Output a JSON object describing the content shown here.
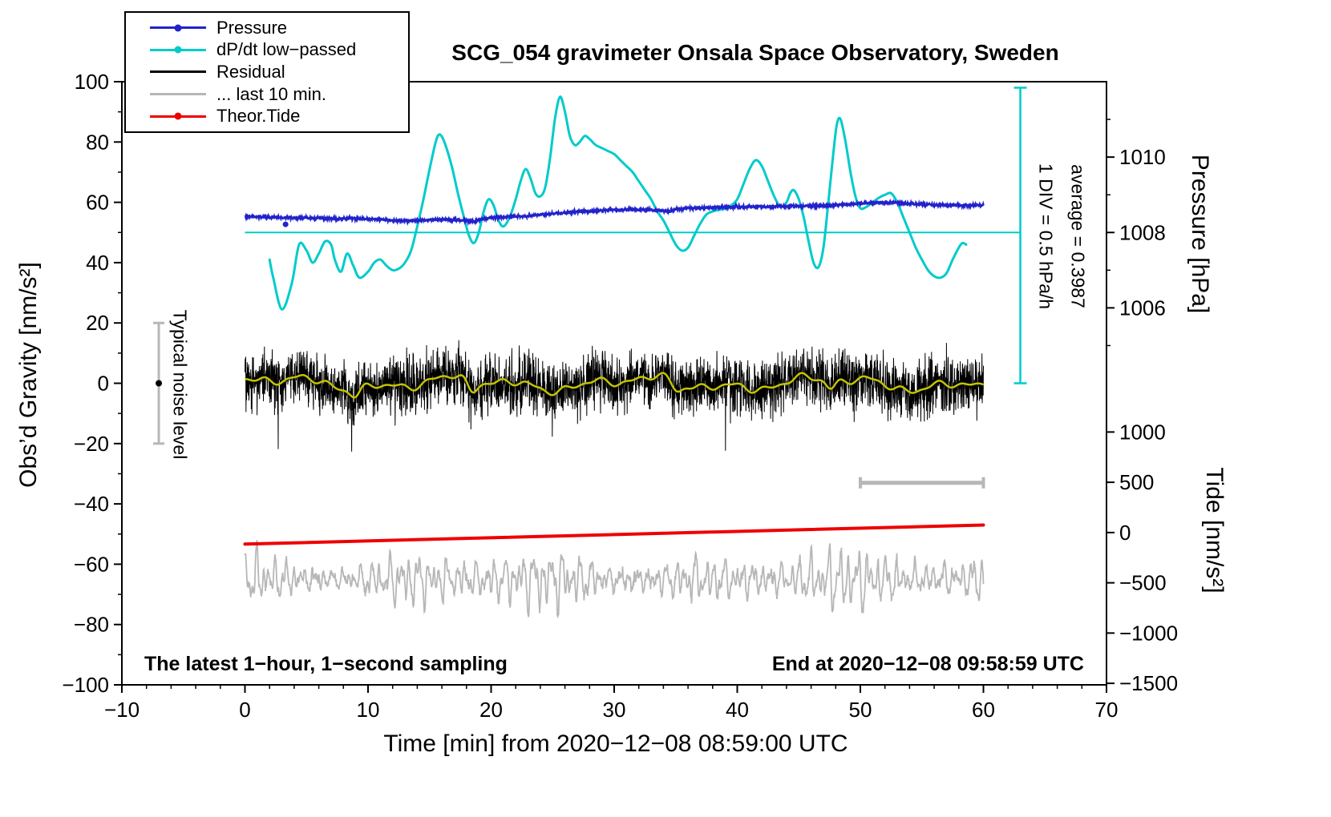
{
  "title": "SCG_054 gravimeter Onsala Space Observatory, Sweden",
  "footer": {
    "sampling_note": "The latest 1−hour, 1−second sampling",
    "end_time": "End at 2020−12−08 09:58:59 UTC"
  },
  "side_annotations": {
    "div_scale": "1 DIV = 0.5 hPa/h",
    "average": "average = 0.3987",
    "noise_level": "Typical noise level"
  },
  "legend": {
    "items": [
      {
        "label": "Pressure",
        "color": "#2222cc",
        "dot": true,
        "thickness": 3
      },
      {
        "label": "dP/dt low−passed",
        "color": "#00cbcb",
        "dot": true,
        "thickness": 3
      },
      {
        "label": "Residual",
        "color": "#000000",
        "dot": false,
        "thickness": 3
      },
      {
        "label": "... last 10 min.",
        "color": "#b7b7b7",
        "dot": false,
        "thickness": 3
      },
      {
        "label": "Theor.Tide",
        "color": "#ee0000",
        "dot": true,
        "thickness": 3
      }
    ]
  },
  "axes": {
    "x": {
      "label": "Time [min] from 2020−12−08 08:59:00 UTC",
      "min": -10,
      "max": 70,
      "major_ticks": [
        -10,
        0,
        10,
        20,
        30,
        40,
        50,
        60,
        70
      ],
      "minor_step": 2
    },
    "y_left": {
      "label": "Obs’d Gravity [nm/s²]",
      "min": -100,
      "max": 100,
      "major_ticks": [
        -100,
        -80,
        -60,
        -40,
        -20,
        0,
        20,
        40,
        60,
        80,
        100
      ],
      "minor_step": 10
    },
    "y_right_pressure": {
      "label": "Pressure [hPa]",
      "major_ticks": [
        1006,
        1008,
        1010
      ],
      "minor_ticks": [
        1005,
        1007,
        1009,
        1011
      ],
      "map": {
        "ref_hPa": 1008,
        "gravity_at_ref": 50,
        "gravity_per_hPa": 12.5
      }
    },
    "y_right_tide": {
      "label": "Tide [nm/s²]",
      "major_ticks": [
        1000,
        500,
        0,
        -500,
        -1000,
        -1500
      ],
      "map": {
        "gravity_at_zero": -49.5,
        "tide_per_gravity": 30
      }
    }
  },
  "chart_data": {
    "type": "line",
    "x_unit": "min",
    "series": [
      {
        "name": "Pressure",
        "axis": "pressure",
        "unit": "hPa",
        "color": "#2222cc",
        "style": "fuzzy-line",
        "x": [
          0,
          2,
          4,
          5,
          7,
          9,
          10,
          11,
          12,
          13,
          14,
          15,
          16,
          17,
          18,
          18.6,
          19,
          20,
          21,
          22,
          23,
          24,
          25,
          26,
          27,
          28,
          29,
          30,
          31,
          32,
          33,
          34,
          34.5,
          35,
          36,
          37,
          38,
          39,
          40,
          42,
          44,
          45,
          46,
          47,
          48,
          49,
          50,
          51,
          52,
          53,
          54,
          55,
          56,
          57,
          58,
          59,
          60
        ],
        "y": [
          1008.424,
          1008.408,
          1008.384,
          1008.392,
          1008.368,
          1008.368,
          1008.36,
          1008.344,
          1008.32,
          1008.304,
          1008.32,
          1008.336,
          1008.344,
          1008.336,
          1008.312,
          1008.288,
          1008.336,
          1008.392,
          1008.408,
          1008.424,
          1008.44,
          1008.472,
          1008.504,
          1008.528,
          1008.552,
          1008.568,
          1008.584,
          1008.6,
          1008.608,
          1008.608,
          1008.6,
          1008.576,
          1008.552,
          1008.616,
          1008.64,
          1008.656,
          1008.664,
          1008.672,
          1008.68,
          1008.688,
          1008.696,
          1008.696,
          1008.704,
          1008.712,
          1008.728,
          1008.744,
          1008.768,
          1008.784,
          1008.8,
          1008.784,
          1008.768,
          1008.752,
          1008.736,
          1008.728,
          1008.72,
          1008.72,
          1008.728
        ]
      },
      {
        "name": "Pressure outlier point",
        "axis": "pressure",
        "color": "#2222cc",
        "point": {
          "x": 3.3,
          "y": 1008.216
        }
      },
      {
        "name": "dP/dt low−passed",
        "axis": "left",
        "unit": "display (1 DIV = 0.5 hPa/h)",
        "color": "#00cbcb",
        "style": "smooth-line",
        "x": [
          2.0,
          2.3,
          3.0,
          3.8,
          4.4,
          5.0,
          5.5,
          6.0,
          6.5,
          7.0,
          7.3,
          7.8,
          8.3,
          8.8,
          9.3,
          10.0,
          10.5,
          11.0,
          11.5,
          12.0,
          12.5,
          13.0,
          13.5,
          14.0,
          14.5,
          15.0,
          15.5,
          15.8,
          16.2,
          16.8,
          17.3,
          17.8,
          18.2,
          18.6,
          19.0,
          19.4,
          19.8,
          20.2,
          20.6,
          21.0,
          21.5,
          22.0,
          22.4,
          22.8,
          23.2,
          23.6,
          24.0,
          24.4,
          24.8,
          25.2,
          25.6,
          26.0,
          26.4,
          26.8,
          27.2,
          27.6,
          28.0,
          28.5,
          29.0,
          29.5,
          30.0,
          30.5,
          31.0,
          31.5,
          32.0,
          32.5,
          33.0,
          33.5,
          34.0,
          34.5,
          35.0,
          35.5,
          36.0,
          36.5,
          37.0,
          37.5,
          38.0,
          38.5,
          39.0,
          39.5,
          40.0,
          40.5,
          41.0,
          41.5,
          42.0,
          42.5,
          43.0,
          43.5,
          44.0,
          44.3,
          44.6,
          45.0,
          45.4,
          45.8,
          46.2,
          46.6,
          47.0,
          47.4,
          47.8,
          48.1,
          48.4,
          48.8,
          49.2,
          49.6,
          50.0,
          50.5,
          51.0,
          51.5,
          52.0,
          52.5,
          53.0,
          53.5,
          54.0,
          54.5,
          55.0,
          55.5,
          56.0,
          56.5,
          57.0,
          57.5,
          58.0,
          58.3,
          58.6
        ],
        "y": [
          41,
          35,
          24.5,
          33,
          46,
          44,
          40,
          43,
          47,
          46,
          41,
          37,
          43,
          39,
          35,
          37,
          40,
          41,
          39,
          37.5,
          38,
          40,
          44,
          52,
          61,
          71,
          80,
          82.5,
          80,
          72,
          63,
          55,
          49,
          46.5,
          50,
          57,
          61,
          59,
          54,
          52,
          55,
          61,
          67,
          71,
          68,
          63,
          62,
          65,
          75,
          88,
          95,
          90,
          82,
          79,
          80,
          82,
          81,
          79,
          78,
          77,
          76,
          74,
          72,
          70,
          67,
          64,
          61,
          57,
          54,
          50,
          46,
          44,
          45,
          49,
          53,
          56,
          57,
          57.5,
          58,
          59,
          61,
          66,
          71,
          74,
          72,
          67,
          62,
          58.5,
          60,
          63,
          64,
          61,
          55,
          47,
          40,
          38.5,
          45,
          60,
          76,
          86,
          87.5,
          80,
          70,
          62,
          58,
          58.5,
          60,
          61.5,
          62.5,
          63,
          60,
          55,
          50,
          45,
          41,
          37.5,
          35.5,
          35,
          36.5,
          41,
          45,
          46.5,
          46
        ]
      },
      {
        "name": "dP/dt reference line",
        "axis": "left",
        "color": "#00cbcb",
        "x": [
          0,
          63
        ],
        "y": [
          50,
          50
        ]
      },
      {
        "name": "Residual",
        "axis": "left",
        "unit": "nm/s²",
        "color": "#000000",
        "style": "noise",
        "generator": {
          "kind": "noise-around-smooth",
          "n": 3600,
          "x_min": 0,
          "x_max": 60,
          "std": 4.5,
          "spike_prob": 0.012,
          "spike_gain": 1.9,
          "clamp": 23,
          "seed": 20201208
        }
      },
      {
        "name": "Residual smoothed",
        "axis": "left",
        "unit": "nm/s²",
        "color": "#c3c300",
        "style": "smooth-line",
        "smooth": {
          "components": [
            [
              1.7,
              0.42,
              0.5
            ],
            [
              1.1,
              1.1,
              2.2
            ],
            [
              0.8,
              2.3,
              4.4
            ],
            [
              0.5,
              3.9,
              1.2
            ]
          ],
          "dips": [
            [
              9.0,
              0.5,
              -2.0
            ],
            [
              18.4,
              0.55,
              -3.8
            ],
            [
              35.1,
              0.6,
              -3.2
            ],
            [
              47.6,
              0.5,
              -2.6
            ]
          ]
        }
      },
      {
        "name": "... last 10 min.",
        "axis": "left",
        "unit": "nm/s²",
        "color": "#b7b7b7",
        "style": "oscillation",
        "generator": {
          "kind": "oscillation",
          "n": 1800,
          "x_min": 0,
          "x_max": 60,
          "mean": -65,
          "components": [
            [
              3.2,
              8.1,
              0.3
            ],
            [
              2.6,
              12.7,
              1.7
            ],
            [
              2.2,
              5.3,
              2.4
            ],
            [
              1.5,
              20.9,
              0.8
            ]
          ],
          "envelope": [
            [
              0.35,
              0.52,
              1.3
            ],
            [
              0.25,
              0.23,
              3.0
            ]
          ],
          "noise_std": 0.8,
          "clamp_low": -78.5,
          "clamp_high": -52,
          "seed": 7
        }
      },
      {
        "name": "Theor.Tide",
        "axis": "tide",
        "unit": "nm/s²",
        "color": "#ee0000",
        "x": [
          0,
          60
        ],
        "y": [
          -115,
          75
        ]
      }
    ],
    "markers": {
      "typical_noise_bar": {
        "x": -7,
        "center": 0,
        "half_height": 20,
        "color": "#b7b7b7"
      },
      "last10min_span_bar": {
        "x1": 50,
        "x2": 60,
        "y": -33,
        "color": "#b7b7b7"
      },
      "div_scale_bar": {
        "x": 63,
        "y_from": 0,
        "y_to": 98,
        "color": "#00cbcb"
      }
    }
  }
}
